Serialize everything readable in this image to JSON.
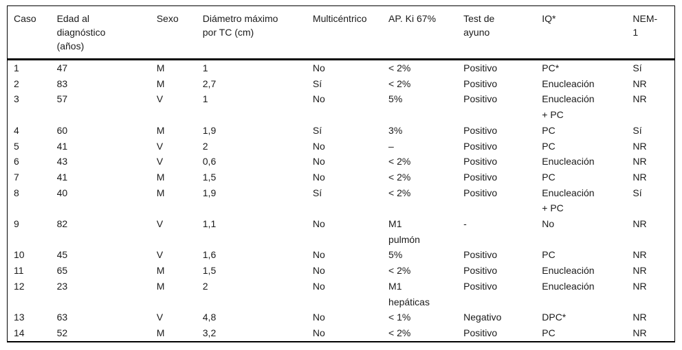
{
  "page": {
    "background": "#ffffff",
    "text_color": "#1a1a1a",
    "rule_color": "#000000"
  },
  "table": {
    "columns": [
      "Caso",
      "Edad al\ndiagnóstico\n(años)",
      "Sexo",
      "Diámetro máximo\npor TC (cm)",
      "Multicéntrico",
      "AP. Ki 67%",
      "Test de\nayuno",
      "IQ*",
      "NEM-\n1"
    ],
    "column_keys": [
      "caso",
      "edad-diagnostico",
      "sexo",
      "diametro-tc",
      "multicentrico",
      "ap-ki-67",
      "test-ayuno",
      "iq",
      "nem-1"
    ],
    "rows": [
      [
        "1",
        "47",
        "M",
        "1",
        "No",
        "< 2%",
        "Positivo",
        "PC*",
        "Sí"
      ],
      [
        "2",
        "83",
        "M",
        "2,7",
        "Sí",
        "< 2%",
        "Positivo",
        "Enucleación",
        "NR"
      ],
      [
        "3",
        "57",
        "V",
        "1",
        "No",
        "5%",
        "Positivo",
        "Enucleación\n+ PC",
        "NR"
      ],
      [
        "4",
        "60",
        "M",
        "1,9",
        "Sí",
        "3%",
        "Positivo",
        "PC",
        "Sí"
      ],
      [
        "5",
        "41",
        "V",
        "2",
        "No",
        "–",
        "Positivo",
        "PC",
        "NR"
      ],
      [
        "6",
        "43",
        "V",
        "0,6",
        "No",
        "< 2%",
        "Positivo",
        "Enucleación",
        "NR"
      ],
      [
        "7",
        "41",
        "M",
        "1,5",
        "No",
        "< 2%",
        "Positivo",
        "PC",
        "NR"
      ],
      [
        "8",
        "40",
        "M",
        "1,9",
        "Sí",
        "< 2%",
        "Positivo",
        "Enucleación\n+ PC",
        "Sí"
      ],
      [
        "9",
        "82",
        "V",
        "1,1",
        "No",
        "M1\npulmón",
        "-",
        "No",
        "NR"
      ],
      [
        "10",
        "45",
        "V",
        "1,6",
        "No",
        "5%",
        "Positivo",
        "PC",
        "NR"
      ],
      [
        "11",
        "65",
        "M",
        "1,5",
        "No",
        "< 2%",
        "Positivo",
        "Enucleación",
        "NR"
      ],
      [
        "12",
        "23",
        "M",
        "2",
        "No",
        "M1\nhepáticas",
        "Positivo",
        "Enucleación",
        "NR"
      ],
      [
        "13",
        "63",
        "V",
        "4,8",
        "No",
        "< 1%",
        "Negativo",
        "DPC*",
        "NR"
      ],
      [
        "14",
        "52",
        "M",
        "3,2",
        "No",
        "< 2%",
        "Positivo",
        "PC",
        "NR"
      ]
    ]
  }
}
